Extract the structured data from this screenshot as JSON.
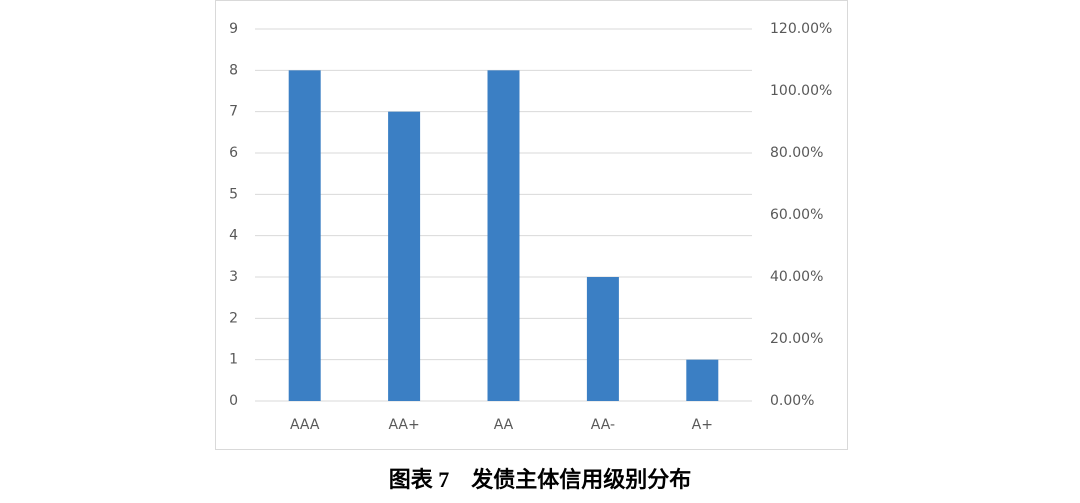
{
  "chart_data": {
    "type": "bar",
    "title": "图表 7　发债主体信用级别分布",
    "categories": [
      "AAA",
      "AA+",
      "AA",
      "AA-",
      "A+"
    ],
    "values": [
      8,
      7,
      8,
      3,
      1
    ],
    "color": "#3b7fc4",
    "ylim": [
      0,
      9
    ],
    "yticks": [
      0,
      1,
      2,
      3,
      4,
      5,
      6,
      7,
      8,
      9
    ],
    "y2lim": [
      0,
      120
    ],
    "y2ticks": [
      {
        "value": 0,
        "label": "0.00%"
      },
      {
        "value": 20,
        "label": "20.00%"
      },
      {
        "value": 40,
        "label": "40.00%"
      },
      {
        "value": 60,
        "label": "60.00%"
      },
      {
        "value": 80,
        "label": "80.00%"
      },
      {
        "value": 100,
        "label": "100.00%"
      },
      {
        "value": 120,
        "label": "120.00%"
      }
    ],
    "grid": true
  }
}
